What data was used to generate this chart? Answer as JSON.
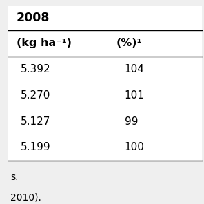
{
  "year_header": "2008",
  "col1_header": "(kg ha⁻¹)",
  "col2_header": "(%)¹",
  "rows": [
    [
      "5.392",
      "104"
    ],
    [
      "5.270",
      "101"
    ],
    [
      "5.127",
      "99"
    ],
    [
      "5.199",
      "100"
    ]
  ],
  "footer_lines": [
    "s.",
    "2010)."
  ],
  "bg_color": "#efefef",
  "table_bg": "#ffffff",
  "font_size": 11,
  "header_font_size": 11.5
}
